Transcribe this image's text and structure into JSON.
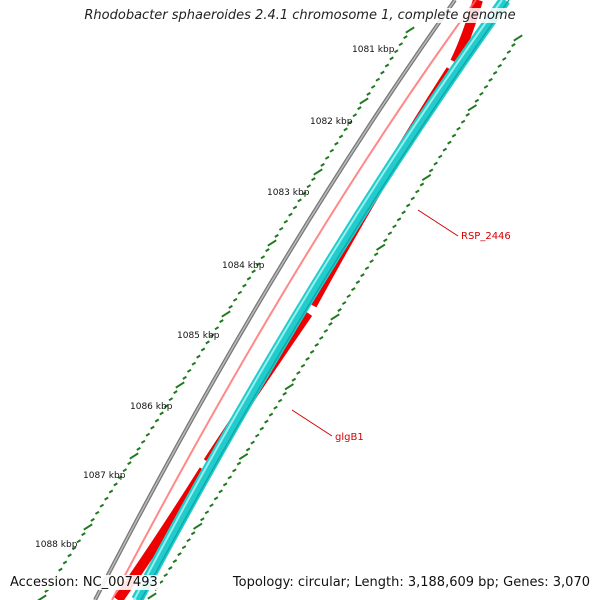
{
  "title": "Rhodobacter sphaeroides 2.4.1 chromosome 1, complete genome",
  "accession": "Accession: NC_007493",
  "summary": "Topology: circular; Length: 3,188,609 bp; Genes: 3,070",
  "ticks": [
    {
      "label": "1081 kbp"
    },
    {
      "label": "1082 kbp"
    },
    {
      "label": "1083 kbp"
    },
    {
      "label": "1084 kbp"
    },
    {
      "label": "1085 kbp"
    },
    {
      "label": "1086 kbp"
    },
    {
      "label": "1087 kbp"
    },
    {
      "label": "1088 kbp"
    }
  ],
  "genes": [
    {
      "name": "RSP_2446",
      "color": "#e8171f"
    },
    {
      "name": "glgB1",
      "color": "#e8171f"
    }
  ],
  "colors": {
    "backbone": "#888888",
    "forward_gene": "#ff0000",
    "forward_gene_dark": "#cc0000",
    "reverse_track": "#33cccc",
    "reverse_track_light": "#8fe6e6",
    "tick": "#1f7a1f",
    "gene_label": "#d40000"
  }
}
